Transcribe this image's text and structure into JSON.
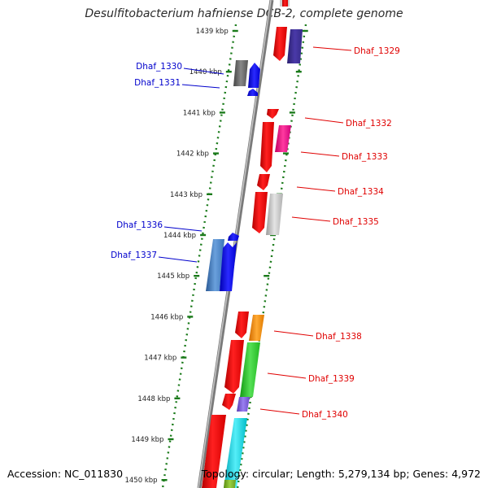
{
  "title": "Desulfitobacterium hafniense DCB-2, complete genome",
  "footer": {
    "accession": "Accession: NC_011830",
    "summary": "Topology: circular; Length: 5,279,134 bp; Genes: 4,972"
  },
  "scale_labels": [
    "1439 kbp",
    "1440 kbp",
    "1441 kbp",
    "1442 kbp",
    "1443 kbp",
    "1444 kbp",
    "1445 kbp",
    "1446 kbp",
    "1447 kbp",
    "1448 kbp",
    "1449 kbp",
    "1450 kbp"
  ],
  "genes": [
    {
      "name": "Dhaf_1329",
      "strand": "+",
      "color": "#e8000b"
    },
    {
      "name": "Dhaf_1330",
      "strand": "-",
      "color": "#606060"
    },
    {
      "name": "Dhaf_1331",
      "strand": "-",
      "color": "#0000ee"
    },
    {
      "name": "Dhaf_1332",
      "strand": "+",
      "color": "#e8000b"
    },
    {
      "name": "Dhaf_1333",
      "strand": "+",
      "color": "#ee0077"
    },
    {
      "name": "Dhaf_1334",
      "strand": "+",
      "color": "#e8000b"
    },
    {
      "name": "Dhaf_1335",
      "strand": "+",
      "color": "#b0b0b0"
    },
    {
      "name": "Dhaf_1336",
      "strand": "-",
      "color": "#3a74b8"
    },
    {
      "name": "Dhaf_1337",
      "strand": "-",
      "color": "#0000ee"
    },
    {
      "name": "Dhaf_1338",
      "strand": "+",
      "color": "#ff8800"
    },
    {
      "name": "Dhaf_1339",
      "strand": "+",
      "color": "#22bb22"
    },
    {
      "name": "Dhaf_1340",
      "strand": "+",
      "color": "#7755cc"
    }
  ],
  "colors": {
    "plus_label": "#e00000",
    "minus_label": "#0000cc",
    "guide_dots": "#1a7a1a",
    "backbone": "#888888"
  }
}
